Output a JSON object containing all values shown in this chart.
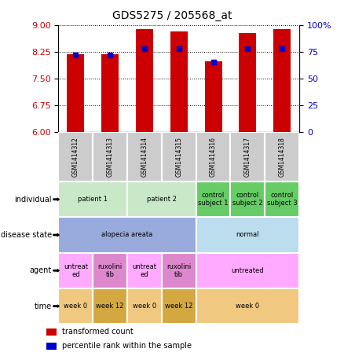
{
  "title": "GDS5275 / 205568_at",
  "samples": [
    "GSM1414312",
    "GSM1414313",
    "GSM1414314",
    "GSM1414315",
    "GSM1414316",
    "GSM1414317",
    "GSM1414318"
  ],
  "transformed_count": [
    8.18,
    8.18,
    8.88,
    8.82,
    7.98,
    8.78,
    8.88
  ],
  "percentile_rank": [
    72,
    72,
    78,
    78,
    65,
    78,
    78
  ],
  "ylim_left": [
    6,
    9
  ],
  "ylim_right": [
    0,
    100
  ],
  "yticks_left": [
    6,
    6.75,
    7.5,
    8.25,
    9
  ],
  "yticks_right": [
    0,
    25,
    50,
    75,
    100
  ],
  "left_color": "#cc0000",
  "right_color": "#0000cc",
  "bar_color": "#cc0000",
  "dot_color": "#0000cc",
  "annotation_rows": [
    {
      "label": "individual",
      "cells": [
        {
          "text": "patient 1",
          "span": 2,
          "color": "#c8e8c8"
        },
        {
          "text": "patient 2",
          "span": 2,
          "color": "#c8e8c8"
        },
        {
          "text": "control\nsubject 1",
          "span": 1,
          "color": "#66cc66"
        },
        {
          "text": "control\nsubject 2",
          "span": 1,
          "color": "#66cc66"
        },
        {
          "text": "control\nsubject 3",
          "span": 1,
          "color": "#66cc66"
        }
      ]
    },
    {
      "label": "disease state",
      "cells": [
        {
          "text": "alopecia areata",
          "span": 4,
          "color": "#99aadd"
        },
        {
          "text": "normal",
          "span": 3,
          "color": "#bbddee"
        }
      ]
    },
    {
      "label": "agent",
      "cells": [
        {
          "text": "untreat\ned",
          "span": 1,
          "color": "#ffaaff"
        },
        {
          "text": "ruxolini\ntib",
          "span": 1,
          "color": "#dd88cc"
        },
        {
          "text": "untreat\ned",
          "span": 1,
          "color": "#ffaaff"
        },
        {
          "text": "ruxolini\ntib",
          "span": 1,
          "color": "#dd88cc"
        },
        {
          "text": "untreated",
          "span": 3,
          "color": "#ffaaff"
        }
      ]
    },
    {
      "label": "time",
      "cells": [
        {
          "text": "week 0",
          "span": 1,
          "color": "#f0c880"
        },
        {
          "text": "week 12",
          "span": 1,
          "color": "#d4a840"
        },
        {
          "text": "week 0",
          "span": 1,
          "color": "#f0c880"
        },
        {
          "text": "week 12",
          "span": 1,
          "color": "#d4a840"
        },
        {
          "text": "week 0",
          "span": 3,
          "color": "#f0c880"
        }
      ]
    }
  ],
  "legend": [
    {
      "color": "#cc0000",
      "label": "transformed count"
    },
    {
      "color": "#0000cc",
      "label": "percentile rank within the sample"
    }
  ],
  "gsm_bg_color": "#cccccc",
  "gsm_border_color": "#ffffff"
}
